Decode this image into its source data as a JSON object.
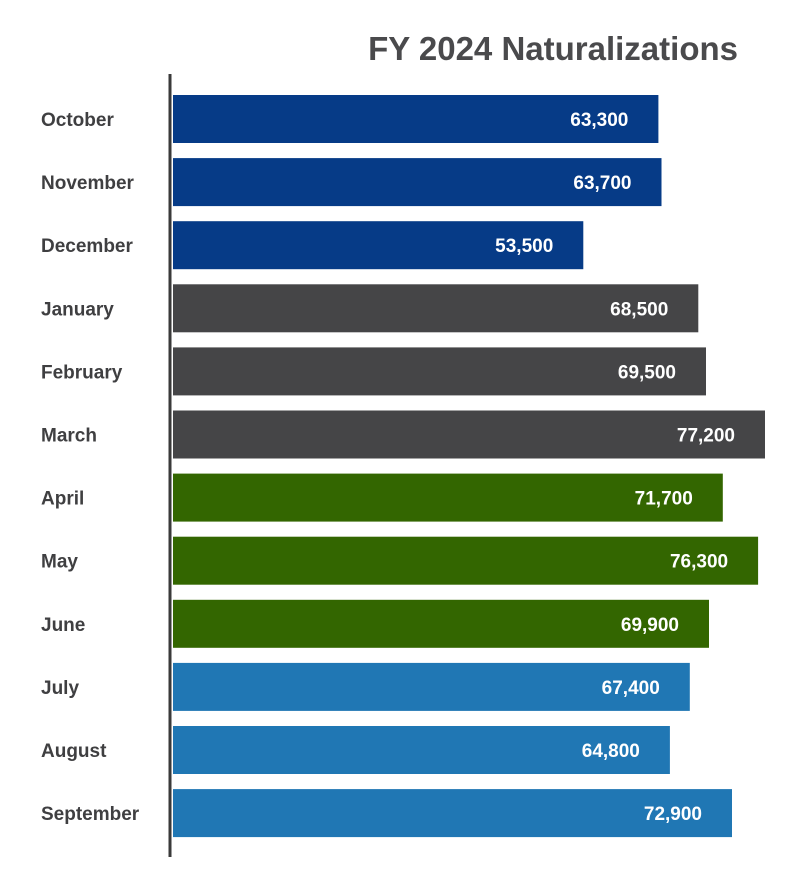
{
  "chart_data": {
    "type": "bar",
    "orientation": "horizontal",
    "title": "FY 2024 Naturalizations",
    "xlabel": "",
    "ylabel": "",
    "grid": false,
    "legend": "none",
    "categories": [
      "October",
      "November",
      "December",
      "January",
      "February",
      "March",
      "April",
      "May",
      "June",
      "July",
      "August",
      "September"
    ],
    "values": [
      63300,
      63700,
      53500,
      68500,
      69500,
      77200,
      71700,
      76300,
      69900,
      67400,
      64800,
      72900
    ],
    "value_labels": [
      "63,300",
      "63,700",
      "53,500",
      "68,500",
      "69,500",
      "77,200",
      "71,700",
      "76,300",
      "69,900",
      "67,400",
      "64,800",
      "72,900"
    ],
    "bar_colors": [
      "#063b87",
      "#063b87",
      "#063b87",
      "#454547",
      "#454547",
      "#454547",
      "#336600",
      "#336600",
      "#336600",
      "#2077b4",
      "#2077b4",
      "#2077b4"
    ],
    "xlim": [
      0,
      77200
    ]
  }
}
